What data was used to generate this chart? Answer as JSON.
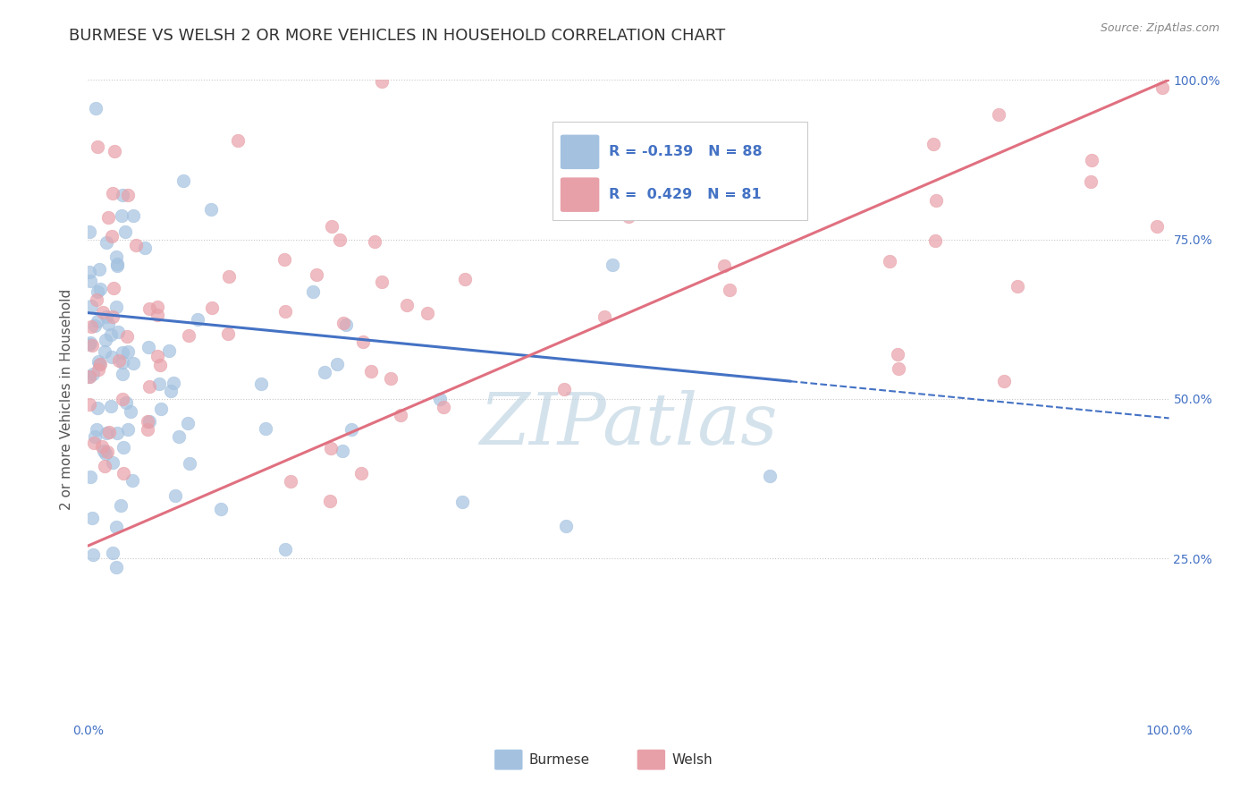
{
  "title": "BURMESE VS WELSH 2 OR MORE VEHICLES IN HOUSEHOLD CORRELATION CHART",
  "source": "Source: ZipAtlas.com",
  "ylabel": "2 or more Vehicles in Household",
  "xlim": [
    0.0,
    1.0
  ],
  "ylim": [
    0.0,
    1.0
  ],
  "grid_color": "#c8c8c8",
  "background_color": "#ffffff",
  "burmese_color": "#a4c2e0",
  "welsh_color": "#e8a0a8",
  "burmese_line_color": "#4472c4",
  "welsh_line_color": "#e07080",
  "R_burmese": -0.139,
  "N_burmese": 88,
  "R_welsh": 0.429,
  "N_welsh": 81,
  "burmese_label": "Burmese",
  "welsh_label": "Welsh",
  "watermark": "ZIPatlas",
  "watermark_color": "#b8d0e0",
  "title_fontsize": 13,
  "label_fontsize": 11,
  "tick_fontsize": 10,
  "legend_text_color": "#4472c4",
  "burmese_line_y0": 0.635,
  "burmese_line_y1": 0.47,
  "welsh_line_y0": 0.27,
  "welsh_line_y1": 1.0
}
